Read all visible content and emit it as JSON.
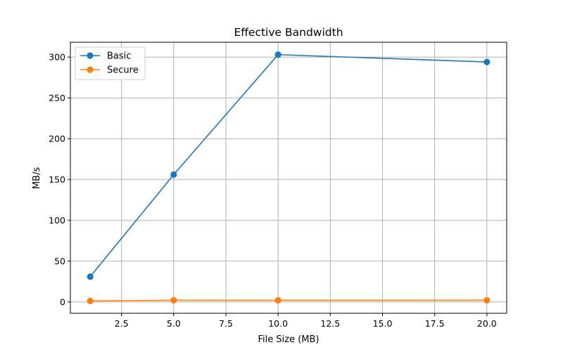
{
  "chart_data": {
    "type": "line",
    "title": "Effective Bandwidth",
    "xlabel": "File Size (MB)",
    "ylabel": "MB/s",
    "x": [
      1,
      5,
      10,
      20
    ],
    "series": [
      {
        "name": "Basic",
        "values": [
          31,
          156,
          303,
          294
        ],
        "color": "#1f77b4"
      },
      {
        "name": "Secure",
        "values": [
          1.2,
          2.1,
          2.0,
          2.1
        ],
        "color": "#ff7f0e"
      }
    ],
    "xlim": [
      0.05,
      20.95
    ],
    "ylim": [
      -13.9,
      318.2
    ],
    "xticks": [
      2.5,
      5.0,
      7.5,
      10.0,
      12.5,
      15.0,
      17.5,
      20.0
    ],
    "xtick_labels": [
      "2.5",
      "5.0",
      "7.5",
      "10.0",
      "12.5",
      "15.0",
      "17.5",
      "20.0"
    ],
    "yticks": [
      0,
      50,
      100,
      150,
      200,
      250,
      300
    ],
    "ytick_labels": [
      "0",
      "50",
      "100",
      "150",
      "200",
      "250",
      "300"
    ],
    "grid": true,
    "legend_position": "top-left",
    "marker": "circle"
  }
}
